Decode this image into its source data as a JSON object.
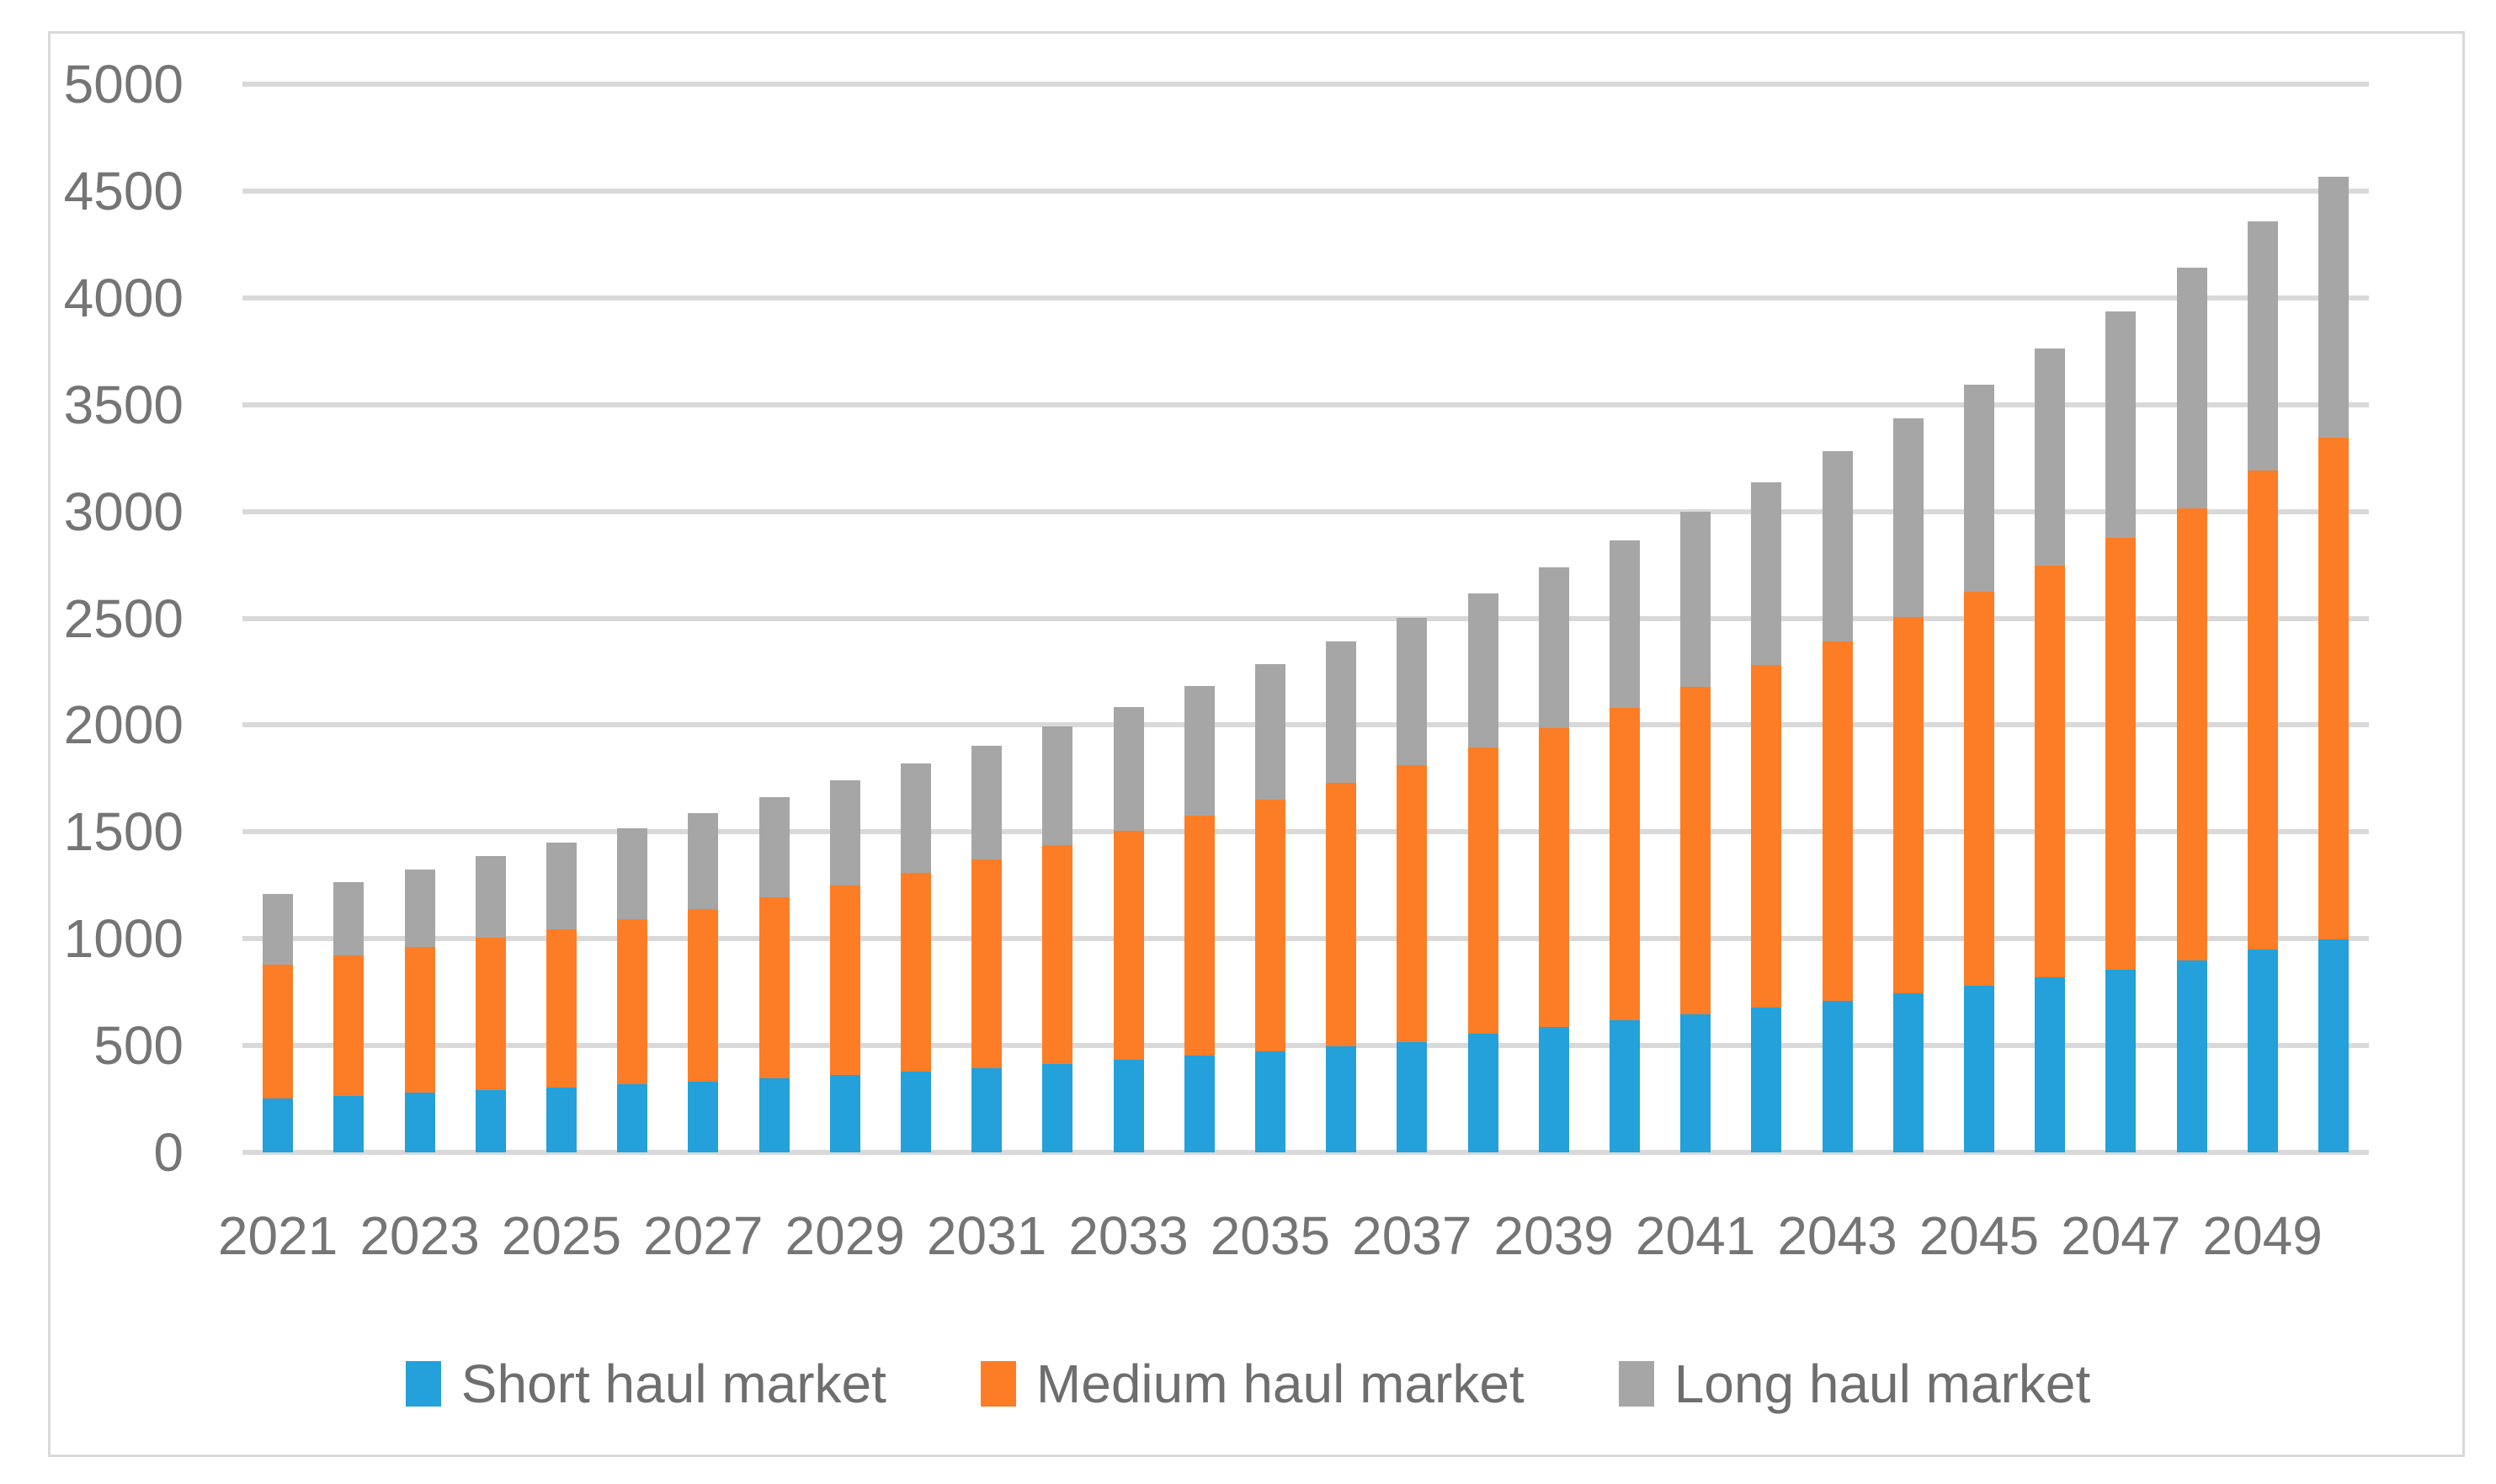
{
  "chart_data": {
    "type": "bar",
    "stacked": true,
    "title": "",
    "xlabel": "",
    "ylabel": "",
    "categories": [
      "2021",
      "2022",
      "2023",
      "2024",
      "2025",
      "2026",
      "2027",
      "2028",
      "2029",
      "2030",
      "2031",
      "2032",
      "2033",
      "2034",
      "2035",
      "2036",
      "2037",
      "2038",
      "2039",
      "2040",
      "2041",
      "2042",
      "2043",
      "2044",
      "2045",
      "2046",
      "2047",
      "2048",
      "2049",
      "2050"
    ],
    "x_tick_labels": [
      "2021",
      "2023",
      "2025",
      "2027",
      "2029",
      "2031",
      "2033",
      "2035",
      "2037",
      "2039",
      "2041",
      "2043",
      "2045",
      "2047",
      "2049"
    ],
    "series": [
      {
        "name": "Short haul market",
        "color": "#24A0DA",
        "values": [
          252,
          266,
          280,
          292,
          305,
          318,
          332,
          347,
          362,
          378,
          395,
          413,
          432,
          452,
          473,
          495,
          518,
          556,
          587,
          617,
          646,
          678,
          710,
          744,
          779,
          818,
          857,
          899,
          948,
          995
        ]
      },
      {
        "name": "Medium haul market",
        "color": "#FD7D26",
        "values": [
          628,
          656,
          682,
          711,
          741,
          774,
          808,
          847,
          888,
          932,
          977,
          1024,
          1073,
          1124,
          1178,
          1234,
          1293,
          1341,
          1400,
          1464,
          1534,
          1605,
          1681,
          1761,
          1845,
          1930,
          2021,
          2116,
          2242,
          2350
        ]
      },
      {
        "name": "Long haul market",
        "color": "#A6A6A6",
        "values": [
          330,
          344,
          363,
          384,
          405,
          427,
          449,
          469,
          490,
          511,
          533,
          556,
          581,
          607,
          633,
          661,
          690,
          720,
          751,
          784,
          818,
          854,
          892,
          930,
          970,
          1013,
          1057,
          1128,
          1167,
          1221
        ]
      }
    ],
    "ylim": [
      0,
      5000
    ],
    "y_ticks": [
      0,
      500,
      1000,
      1500,
      2000,
      2500,
      3000,
      3500,
      4000,
      4500,
      5000
    ],
    "grid": true,
    "gridline_color": "#D9D9D9",
    "text_color": "#757575",
    "border_color": "#D9D9D9",
    "background_color": "#FFFFFF",
    "legend_position": "bottom"
  }
}
